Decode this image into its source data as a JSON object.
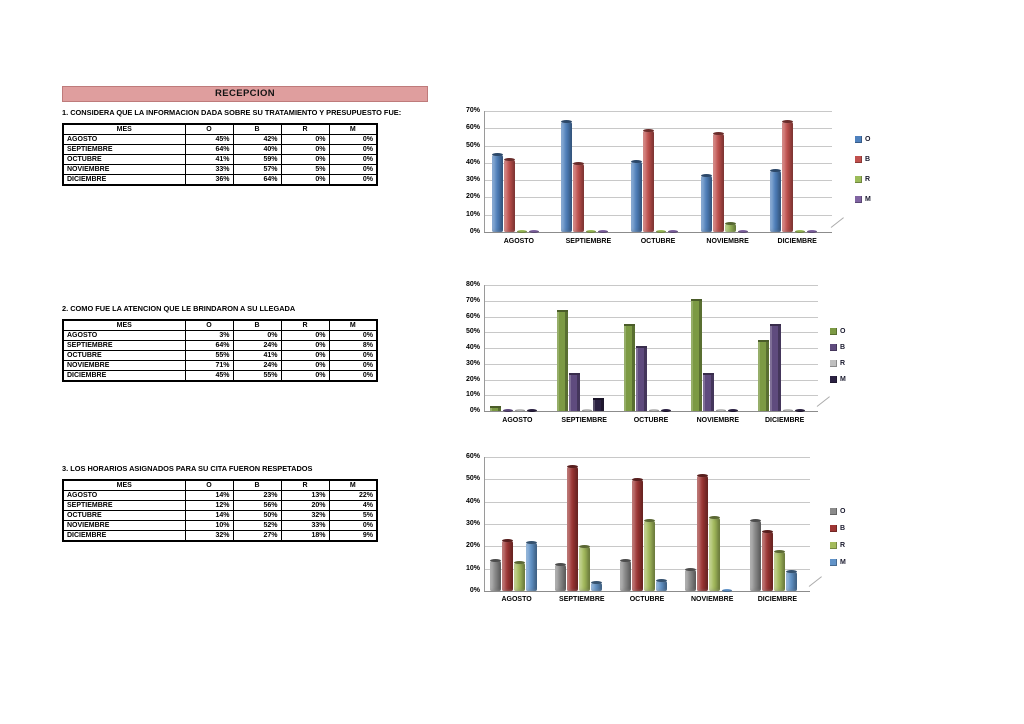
{
  "banner": {
    "title": "RECEPCION",
    "bg_color": "#DF9E9E"
  },
  "sections": [
    {
      "title": "1. CONSIDERA QUE LA INFORMACION DADA SOBRE SU TRATAMIENTO Y PRESUPUESTO FUE:",
      "table": {
        "columns": [
          "MES",
          "O",
          "B",
          "R",
          "M"
        ],
        "rows": [
          [
            "AGOSTO",
            "45%",
            "42%",
            "0%",
            "0%"
          ],
          [
            "SEPTIEMBRE",
            "64%",
            "40%",
            "0%",
            "0%"
          ],
          [
            "OCTUBRE",
            "41%",
            "59%",
            "0%",
            "0%"
          ],
          [
            "NOVIEMBRE",
            "33%",
            "57%",
            "5%",
            "0%"
          ],
          [
            "DICIEMBRE",
            "36%",
            "64%",
            "0%",
            "0%"
          ]
        ]
      }
    },
    {
      "title": "2. COMO FUE LA ATENCION QUE LE BRINDARON A SU LLEGADA",
      "table": {
        "columns": [
          "MES",
          "O",
          "B",
          "R",
          "M"
        ],
        "rows": [
          [
            "AGOSTO",
            "3%",
            "0%",
            "0%",
            "0%"
          ],
          [
            "SEPTIEMBRE",
            "64%",
            "24%",
            "0%",
            "8%"
          ],
          [
            "OCTUBRE",
            "55%",
            "41%",
            "0%",
            "0%"
          ],
          [
            "NOVIEMBRE",
            "71%",
            "24%",
            "0%",
            "0%"
          ],
          [
            "DICIEMBRE",
            "45%",
            "55%",
            "0%",
            "0%"
          ]
        ]
      }
    },
    {
      "title": "3. LOS HORARIOS ASIGNADOS PARA SU CITA FUERON RESPETADOS",
      "table": {
        "columns": [
          "MES",
          "O",
          "B",
          "R",
          "M"
        ],
        "rows": [
          [
            "AGOSTO",
            "14%",
            "23%",
            "13%",
            "22%"
          ],
          [
            "SEPTIEMBRE",
            "12%",
            "56%",
            "20%",
            "4%"
          ],
          [
            "OCTUBRE",
            "14%",
            "50%",
            "32%",
            "5%"
          ],
          [
            "NOVIEMBRE",
            "10%",
            "52%",
            "33%",
            "0%"
          ],
          [
            "DICIEMBRE",
            "32%",
            "27%",
            "18%",
            "9%"
          ]
        ]
      }
    }
  ],
  "chart_data": [
    {
      "type": "bar",
      "bar_style": "cylinder",
      "title": "",
      "categories": [
        "AGOSTO",
        "SEPTIEMBRE",
        "OCTUBRE",
        "NOVIEMBRE",
        "DICIEMBRE"
      ],
      "series": [
        {
          "name": "O",
          "color": "#4F81BD",
          "values": [
            45,
            64,
            41,
            33,
            36
          ]
        },
        {
          "name": "B",
          "color": "#C0504D",
          "values": [
            42,
            40,
            59,
            57,
            64
          ]
        },
        {
          "name": "R",
          "color": "#9BBB59",
          "values": [
            0,
            0,
            0,
            5,
            0
          ]
        },
        {
          "name": "M",
          "color": "#8064A2",
          "values": [
            0,
            0,
            0,
            0,
            0
          ]
        }
      ],
      "ylim": [
        0,
        70
      ],
      "ytick": 10,
      "ytick_labels": [
        "0%",
        "10%",
        "20%",
        "30%",
        "40%",
        "50%",
        "60%",
        "70%"
      ],
      "grid": true,
      "legend_position": "right"
    },
    {
      "type": "bar",
      "bar_style": "box",
      "title": "",
      "categories": [
        "AGOSTO",
        "SEPTIEMBRE",
        "OCTUBRE",
        "NOVIEMBRE",
        "DICIEMBRE"
      ],
      "series": [
        {
          "name": "O",
          "color": "#7C9A44",
          "values": [
            3,
            64,
            55,
            71,
            45
          ]
        },
        {
          "name": "B",
          "color": "#5F4B7E",
          "values": [
            0,
            24,
            41,
            24,
            55
          ]
        },
        {
          "name": "R",
          "color": "#BFBFBF",
          "values": [
            0,
            0,
            0,
            0,
            0
          ]
        },
        {
          "name": "M",
          "color": "#2B2142",
          "values": [
            0,
            8,
            0,
            0,
            0
          ]
        }
      ],
      "ylim": [
        0,
        80
      ],
      "ytick": 10,
      "ytick_labels": [
        "0%",
        "10%",
        "20%",
        "30%",
        "40%",
        "50%",
        "60%",
        "70%",
        "80%"
      ],
      "grid": true,
      "legend_position": "right"
    },
    {
      "type": "bar",
      "bar_style": "cylinder",
      "title": "",
      "categories": [
        "AGOSTO",
        "SEPTIEMBRE",
        "OCTUBRE",
        "NOVIEMBRE",
        "DICIEMBRE"
      ],
      "series": [
        {
          "name": "O",
          "color": "#8B8B8B",
          "values": [
            14,
            12,
            14,
            10,
            32
          ]
        },
        {
          "name": "B",
          "color": "#9E3634",
          "values": [
            23,
            56,
            50,
            52,
            27
          ]
        },
        {
          "name": "R",
          "color": "#A4BB5C",
          "values": [
            13,
            20,
            32,
            33,
            18
          ]
        },
        {
          "name": "M",
          "color": "#6193C8",
          "values": [
            22,
            4,
            5,
            0,
            9
          ]
        }
      ],
      "ylim": [
        0,
        60
      ],
      "ytick": 10,
      "ytick_labels": [
        "0%",
        "10%",
        "20%",
        "30%",
        "40%",
        "50%",
        "60%"
      ],
      "grid": true,
      "legend_position": "right"
    }
  ]
}
